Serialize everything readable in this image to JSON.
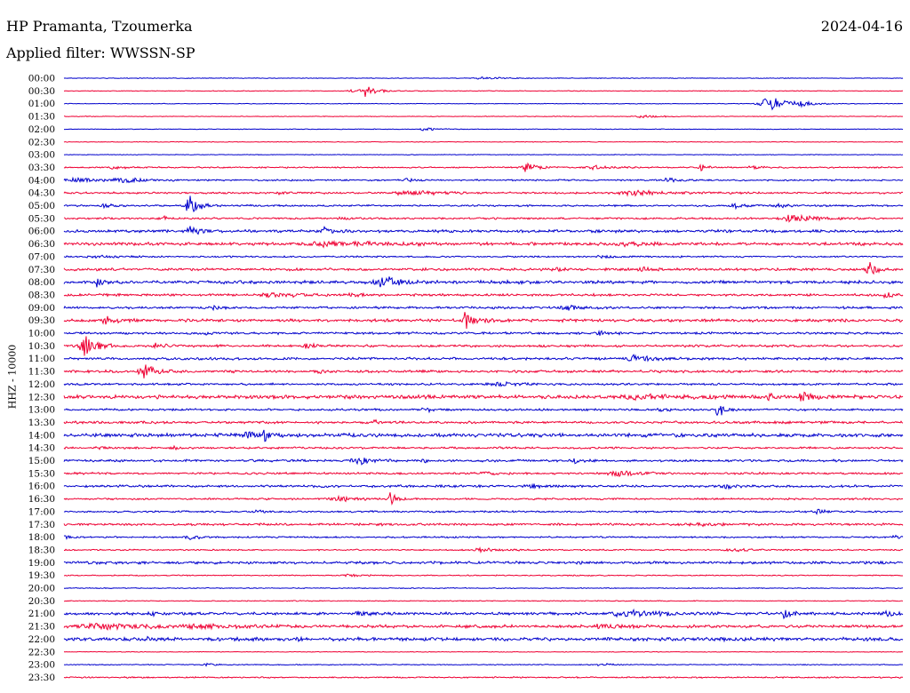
{
  "header": {
    "station": "HP Pramanta, Tzoumerka",
    "date": "2024-04-16",
    "filter": "Applied filter: WWSSN-SP"
  },
  "chart_data": {
    "type": "line",
    "title": "HP Pramanta, Tzoumerka",
    "ylabel": "HHZ - 10000",
    "trace_colors": [
      "#0000cc",
      "#ee0033"
    ],
    "rows": [
      {
        "label": "00:00",
        "color": "#0000cc",
        "noise": 0.3,
        "events": [
          [
            0.5,
            1.5,
            0.015
          ]
        ]
      },
      {
        "label": "00:30",
        "color": "#ee0033",
        "noise": 0.3,
        "events": [
          [
            0.36,
            5,
            0.012
          ],
          [
            0.34,
            2,
            0.005
          ]
        ]
      },
      {
        "label": "01:00",
        "color": "#0000cc",
        "noise": 0.3,
        "events": [
          [
            0.84,
            7,
            0.02
          ],
          [
            0.88,
            2,
            0.01
          ]
        ]
      },
      {
        "label": "01:30",
        "color": "#ee0033",
        "noise": 0.3,
        "events": [
          [
            0.69,
            1,
            0.02
          ]
        ]
      },
      {
        "label": "02:00",
        "color": "#0000cc",
        "noise": 0.3,
        "events": [
          [
            0.43,
            2,
            0.01
          ]
        ]
      },
      {
        "label": "02:30",
        "color": "#ee0033",
        "noise": 0.3,
        "events": []
      },
      {
        "label": "03:00",
        "color": "#0000cc",
        "noise": 0.3,
        "events": []
      },
      {
        "label": "03:30",
        "color": "#ee0033",
        "noise": 0.6,
        "events": [
          [
            0.55,
            5,
            0.01
          ],
          [
            0.63,
            2,
            0.015
          ],
          [
            0.76,
            4,
            0.005
          ],
          [
            0.82,
            2,
            0.01
          ],
          [
            0.06,
            1.5,
            0.01
          ]
        ]
      },
      {
        "label": "04:00",
        "color": "#0000cc",
        "noise": 0.7,
        "events": [
          [
            0.02,
            2,
            0.03
          ],
          [
            0.07,
            2,
            0.02
          ],
          [
            0.41,
            3,
            0.005
          ],
          [
            0.72,
            2,
            0.01
          ]
        ]
      },
      {
        "label": "04:30",
        "color": "#ee0033",
        "noise": 0.8,
        "events": [
          [
            0.26,
            1.5,
            0.01
          ],
          [
            0.41,
            2,
            0.03
          ],
          [
            0.68,
            2,
            0.04
          ]
        ]
      },
      {
        "label": "05:00",
        "color": "#0000cc",
        "noise": 0.8,
        "events": [
          [
            0.15,
            8,
            0.01
          ],
          [
            0.05,
            2,
            0.01
          ],
          [
            0.8,
            2,
            0.01
          ],
          [
            0.85,
            2,
            0.01
          ]
        ]
      },
      {
        "label": "05:30",
        "color": "#ee0033",
        "noise": 0.8,
        "events": [
          [
            0.12,
            2,
            0.005
          ],
          [
            0.87,
            3,
            0.025
          ],
          [
            0.33,
            1.5,
            0.01
          ]
        ]
      },
      {
        "label": "06:00",
        "color": "#0000cc",
        "noise": 1.2,
        "events": [
          [
            0.15,
            4,
            0.01
          ],
          [
            0.31,
            3,
            0.01
          ]
        ]
      },
      {
        "label": "06:30",
        "color": "#ee0033",
        "noise": 1.3,
        "events": [
          [
            0.32,
            2,
            0.05
          ],
          [
            0.67,
            2,
            0.02
          ]
        ]
      },
      {
        "label": "07:00",
        "color": "#0000cc",
        "noise": 0.7,
        "events": [
          [
            0.64,
            1.5,
            0.01
          ],
          [
            0.04,
            1.5,
            0.02
          ]
        ]
      },
      {
        "label": "07:30",
        "color": "#ee0033",
        "noise": 1.1,
        "events": [
          [
            0.96,
            8,
            0.008
          ],
          [
            0.59,
            2.5,
            0.01
          ],
          [
            0.69,
            2.5,
            0.01
          ]
        ]
      },
      {
        "label": "08:00",
        "color": "#0000cc",
        "noise": 1.4,
        "events": [
          [
            0.04,
            5,
            0.005
          ],
          [
            0.38,
            6,
            0.015
          ]
        ]
      },
      {
        "label": "08:30",
        "color": "#ee0033",
        "noise": 1,
        "events": [
          [
            0.25,
            2,
            0.03
          ],
          [
            0.34,
            2,
            0.01
          ],
          [
            0.98,
            3,
            0.008
          ]
        ]
      },
      {
        "label": "09:00",
        "color": "#0000cc",
        "noise": 1,
        "events": [
          [
            0.6,
            2.5,
            0.015
          ],
          [
            0.18,
            1.5,
            0.01
          ]
        ]
      },
      {
        "label": "09:30",
        "color": "#ee0033",
        "noise": 1.3,
        "events": [
          [
            0.48,
            9,
            0.008
          ],
          [
            0.05,
            4,
            0.008
          ]
        ]
      },
      {
        "label": "10:00",
        "color": "#0000cc",
        "noise": 1,
        "events": [
          [
            0.64,
            2,
            0.01
          ],
          [
            0.17,
            1.5,
            0.01
          ]
        ]
      },
      {
        "label": "10:30",
        "color": "#ee0033",
        "noise": 1,
        "events": [
          [
            0.025,
            9,
            0.012
          ],
          [
            0.11,
            3,
            0.008
          ],
          [
            0.29,
            2,
            0.008
          ]
        ]
      },
      {
        "label": "11:00",
        "color": "#0000cc",
        "noise": 1.1,
        "events": [
          [
            0.68,
            3,
            0.02
          ]
        ]
      },
      {
        "label": "11:30",
        "color": "#ee0033",
        "noise": 1.1,
        "events": [
          [
            0.095,
            8,
            0.012
          ],
          [
            0.3,
            3,
            0.005
          ]
        ]
      },
      {
        "label": "12:00",
        "color": "#0000cc",
        "noise": 0.9,
        "events": [
          [
            0.52,
            2,
            0.02
          ]
        ]
      },
      {
        "label": "12:30",
        "color": "#ee0033",
        "noise": 1.6,
        "events": [
          [
            0.88,
            10,
            0.005
          ],
          [
            0.68,
            2,
            0.04
          ],
          [
            0.84,
            3,
            0.005
          ]
        ]
      },
      {
        "label": "13:00",
        "color": "#0000cc",
        "noise": 0.9,
        "events": [
          [
            0.78,
            9,
            0.005
          ],
          [
            0.43,
            2,
            0.01
          ],
          [
            0.71,
            2,
            0.01
          ]
        ]
      },
      {
        "label": "13:30",
        "color": "#ee0033",
        "noise": 1.1,
        "events": [
          [
            0.37,
            3,
            0.005
          ]
        ]
      },
      {
        "label": "14:00",
        "color": "#0000cc",
        "noise": 1.6,
        "events": [
          [
            0.22,
            3,
            0.01
          ],
          [
            0.24,
            5,
            0.005
          ]
        ]
      },
      {
        "label": "14:30",
        "color": "#ee0033",
        "noise": 0.9,
        "events": [
          [
            0.13,
            3,
            0.005
          ],
          [
            0.04,
            1.5,
            0.01
          ]
        ]
      },
      {
        "label": "15:00",
        "color": "#0000cc",
        "noise": 1,
        "events": [
          [
            0.35,
            4,
            0.015
          ],
          [
            0.61,
            2.5,
            0.008
          ],
          [
            0.43,
            1.5,
            0.008
          ]
        ]
      },
      {
        "label": "15:30",
        "color": "#ee0033",
        "noise": 0.9,
        "events": [
          [
            0.66,
            3,
            0.02
          ],
          [
            0.5,
            1.5,
            0.01
          ]
        ]
      },
      {
        "label": "16:00",
        "color": "#0000cc",
        "noise": 1,
        "events": [
          [
            0.56,
            2,
            0.01
          ],
          [
            0.79,
            2,
            0.01
          ]
        ]
      },
      {
        "label": "16:30",
        "color": "#ee0033",
        "noise": 0.8,
        "events": [
          [
            0.39,
            7,
            0.005
          ],
          [
            0.33,
            2,
            0.02
          ]
        ]
      },
      {
        "label": "17:00",
        "color": "#0000cc",
        "noise": 0.8,
        "events": [
          [
            0.23,
            1.5,
            0.01
          ],
          [
            0.9,
            2,
            0.01
          ]
        ]
      },
      {
        "label": "17:30",
        "color": "#ee0033",
        "noise": 1,
        "events": [
          [
            0.76,
            1.5,
            0.02
          ]
        ]
      },
      {
        "label": "18:00",
        "color": "#0000cc",
        "noise": 0.7,
        "events": [
          [
            0.15,
            2,
            0.01
          ],
          [
            0.0,
            2,
            0.005
          ],
          [
            0.99,
            3,
            0.005
          ]
        ]
      },
      {
        "label": "18:30",
        "color": "#ee0033",
        "noise": 0.6,
        "events": [
          [
            0.5,
            2,
            0.02
          ],
          [
            0.8,
            1.5,
            0.02
          ]
        ]
      },
      {
        "label": "19:00",
        "color": "#0000cc",
        "noise": 1.2,
        "events": []
      },
      {
        "label": "19:30",
        "color": "#ee0033",
        "noise": 0.5,
        "events": [
          [
            0.34,
            1.5,
            0.01
          ]
        ]
      },
      {
        "label": "20:00",
        "color": "#0000cc",
        "noise": 0.4,
        "events": []
      },
      {
        "label": "20:30",
        "color": "#ee0033",
        "noise": 0.4,
        "events": []
      },
      {
        "label": "21:00",
        "color": "#0000cc",
        "noise": 1.2,
        "events": [
          [
            0.86,
            5,
            0.008
          ],
          [
            0.67,
            2.5,
            0.04
          ],
          [
            0.1,
            2,
            0.01
          ],
          [
            0.35,
            2,
            0.01
          ],
          [
            0.98,
            3,
            0.01
          ]
        ]
      },
      {
        "label": "21:30",
        "color": "#ee0033",
        "noise": 1.3,
        "events": [
          [
            0.04,
            2.5,
            0.04
          ],
          [
            0.16,
            2,
            0.03
          ],
          [
            0.64,
            2,
            0.02
          ]
        ]
      },
      {
        "label": "22:00",
        "color": "#0000cc",
        "noise": 1.5,
        "events": [
          [
            0.28,
            2,
            0.005
          ],
          [
            0.1,
            1.5,
            0.005
          ]
        ]
      },
      {
        "label": "22:30",
        "color": "#ee0033",
        "noise": 0.3,
        "events": []
      },
      {
        "label": "23:00",
        "color": "#0000cc",
        "noise": 0.4,
        "events": [
          [
            0.17,
            1.5,
            0.01
          ],
          [
            0.64,
            1.5,
            0.01
          ]
        ]
      },
      {
        "label": "23:30",
        "color": "#ee0033",
        "noise": 0.6,
        "events": []
      }
    ]
  }
}
